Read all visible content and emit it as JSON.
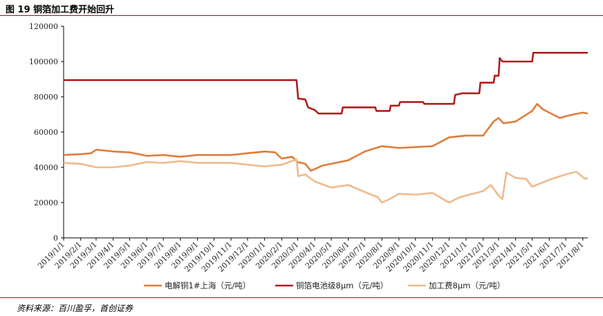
{
  "header": {
    "title": "图 19 铜箔加工费开始回升"
  },
  "footer": {
    "source": "资料来源：百川盈孚，首创证券"
  },
  "chart_data": {
    "type": "line",
    "title": "图 19 铜箔加工费开始回升",
    "xlabel": "",
    "ylabel": "",
    "ylim": [
      0,
      120000
    ],
    "yticks": [
      "0",
      "20000",
      "40000",
      "60000",
      "80000",
      "100000",
      "120000"
    ],
    "x_tick_labels": [
      "2019/1/1",
      "2019/2/1",
      "2019/3/1",
      "2019/4/1",
      "2019/5/1",
      "2019/6/1",
      "2019/7/1",
      "2019/8/1",
      "2019/9/1",
      "2019/10/1",
      "2019/11/1",
      "2019/12/1",
      "2020/1/1",
      "2020/2/1",
      "2020/3/1",
      "2020/4/1",
      "2020/5/1",
      "2020/6/1",
      "2020/7/1",
      "2020/8/1",
      "2020/9/1",
      "2020/10/1",
      "2020/11/1",
      "2020/12/1",
      "2021/1/1",
      "2021/2/1",
      "2021/3/1",
      "2021/4/1",
      "2021/5/1",
      "2021/6/1",
      "2021/7/1",
      "2021/8/1"
    ],
    "x_range": [
      "2019-01-01",
      "2021-08-10"
    ],
    "legend_position": "bottom",
    "grid": false,
    "series": [
      {
        "name": "电解铜1#上海（元/吨）",
        "color": "#e07b39",
        "points": [
          [
            "2019-01-01",
            47000
          ],
          [
            "2019-02-01",
            47500
          ],
          [
            "2019-02-20",
            48000
          ],
          [
            "2019-03-01",
            50000
          ],
          [
            "2019-04-01",
            49000
          ],
          [
            "2019-05-01",
            48500
          ],
          [
            "2019-06-01",
            46500
          ],
          [
            "2019-07-01",
            47000
          ],
          [
            "2019-08-01",
            46000
          ],
          [
            "2019-09-01",
            47000
          ],
          [
            "2019-10-01",
            47000
          ],
          [
            "2019-11-01",
            47000
          ],
          [
            "2019-12-01",
            48000
          ],
          [
            "2020-01-01",
            49000
          ],
          [
            "2020-01-20",
            48500
          ],
          [
            "2020-02-01",
            45000
          ],
          [
            "2020-02-20",
            46000
          ],
          [
            "2020-03-01",
            43000
          ],
          [
            "2020-03-15",
            42000
          ],
          [
            "2020-03-25",
            38000
          ],
          [
            "2020-04-01",
            39000
          ],
          [
            "2020-04-15",
            41000
          ],
          [
            "2020-05-01",
            42000
          ],
          [
            "2020-06-01",
            44000
          ],
          [
            "2020-07-01",
            49000
          ],
          [
            "2020-08-01",
            52000
          ],
          [
            "2020-09-01",
            51000
          ],
          [
            "2020-10-01",
            51500
          ],
          [
            "2020-11-01",
            52000
          ],
          [
            "2020-12-01",
            57000
          ],
          [
            "2021-01-01",
            58000
          ],
          [
            "2021-02-01",
            58000
          ],
          [
            "2021-02-20",
            66000
          ],
          [
            "2021-03-01",
            68000
          ],
          [
            "2021-03-10",
            65000
          ],
          [
            "2021-04-01",
            66000
          ],
          [
            "2021-05-01",
            72000
          ],
          [
            "2021-05-10",
            76000
          ],
          [
            "2021-05-20",
            73000
          ],
          [
            "2021-06-01",
            71000
          ],
          [
            "2021-06-20",
            68000
          ],
          [
            "2021-07-01",
            69000
          ],
          [
            "2021-07-15",
            70000
          ],
          [
            "2021-08-01",
            71000
          ],
          [
            "2021-08-10",
            70500
          ]
        ]
      },
      {
        "name": "铜箔电池级8μm（元/吨）",
        "color": "#b01c1c",
        "points": [
          [
            "2019-01-01",
            89500
          ],
          [
            "2020-02-28",
            89500
          ],
          [
            "2020-03-02",
            79000
          ],
          [
            "2020-03-15",
            78500
          ],
          [
            "2020-03-20",
            74000
          ],
          [
            "2020-04-01",
            72500
          ],
          [
            "2020-04-08",
            70500
          ],
          [
            "2020-05-20",
            70500
          ],
          [
            "2020-05-22",
            74000
          ],
          [
            "2020-07-20",
            74000
          ],
          [
            "2020-07-22",
            72000
          ],
          [
            "2020-08-15",
            72000
          ],
          [
            "2020-08-17",
            75000
          ],
          [
            "2020-09-01",
            75000
          ],
          [
            "2020-09-03",
            77000
          ],
          [
            "2020-10-15",
            77000
          ],
          [
            "2020-10-17",
            76000
          ],
          [
            "2020-12-10",
            76000
          ],
          [
            "2020-12-12",
            81000
          ],
          [
            "2020-12-25",
            82000
          ],
          [
            "2021-01-25",
            82000
          ],
          [
            "2021-01-27",
            88000
          ],
          [
            "2021-02-20",
            88000
          ],
          [
            "2021-02-22",
            92000
          ],
          [
            "2021-03-01",
            92000
          ],
          [
            "2021-03-03",
            102000
          ],
          [
            "2021-03-08",
            100000
          ],
          [
            "2021-05-01",
            100000
          ],
          [
            "2021-05-03",
            105000
          ],
          [
            "2021-08-10",
            105000
          ]
        ]
      },
      {
        "name": "加工费8μm（元/吨）",
        "color": "#f0b98a",
        "points": [
          [
            "2019-01-01",
            42500
          ],
          [
            "2019-02-01",
            42000
          ],
          [
            "2019-03-01",
            40000
          ],
          [
            "2019-04-01",
            40000
          ],
          [
            "2019-05-01",
            41000
          ],
          [
            "2019-06-01",
            43000
          ],
          [
            "2019-07-01",
            42500
          ],
          [
            "2019-08-01",
            43500
          ],
          [
            "2019-09-01",
            42500
          ],
          [
            "2019-10-01",
            42500
          ],
          [
            "2019-11-01",
            42500
          ],
          [
            "2019-12-01",
            41500
          ],
          [
            "2020-01-01",
            40500
          ],
          [
            "2020-02-01",
            41500
          ],
          [
            "2020-02-28",
            44500
          ],
          [
            "2020-03-02",
            35000
          ],
          [
            "2020-03-15",
            36000
          ],
          [
            "2020-03-25",
            33500
          ],
          [
            "2020-04-01",
            32000
          ],
          [
            "2020-05-01",
            28500
          ],
          [
            "2020-06-01",
            30000
          ],
          [
            "2020-07-01",
            26000
          ],
          [
            "2020-07-25",
            23000
          ],
          [
            "2020-08-01",
            20000
          ],
          [
            "2020-08-15",
            22000
          ],
          [
            "2020-09-01",
            25000
          ],
          [
            "2020-10-01",
            24500
          ],
          [
            "2020-11-01",
            25500
          ],
          [
            "2020-12-01",
            20000
          ],
          [
            "2020-12-20",
            23000
          ],
          [
            "2021-01-01",
            24000
          ],
          [
            "2021-02-01",
            26500
          ],
          [
            "2021-02-15",
            30000
          ],
          [
            "2021-03-01",
            24000
          ],
          [
            "2021-03-08",
            22000
          ],
          [
            "2021-03-15",
            37000
          ],
          [
            "2021-04-01",
            34000
          ],
          [
            "2021-04-20",
            33500
          ],
          [
            "2021-05-01",
            29000
          ],
          [
            "2021-06-01",
            33000
          ],
          [
            "2021-07-01",
            36000
          ],
          [
            "2021-07-20",
            37500
          ],
          [
            "2021-08-05",
            33500
          ],
          [
            "2021-08-10",
            34000
          ]
        ]
      }
    ]
  }
}
